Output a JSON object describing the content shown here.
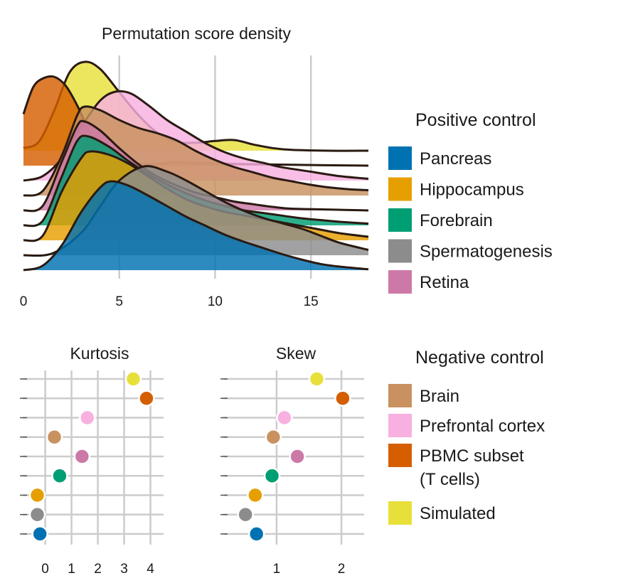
{
  "colors": {
    "Pancreas": "#0072b2",
    "Hippocampus": "#e69f00",
    "Forebrain": "#009e73",
    "Spermatogenesis": "#8c8c8c",
    "Retina": "#cc79a7",
    "Brain": "#c8915f",
    "Prefrontal cortex": "#f7b0e0",
    "PBMC subset (T cells)": "#d55e00",
    "Simulated": "#e8e03a"
  },
  "legend": {
    "positive_title": "Positive control",
    "positive_items": [
      "Pancreas",
      "Hippocampus",
      "Forebrain",
      "Spermatogenesis",
      "Retina"
    ],
    "negative_title": "Negative control",
    "negative_items": [
      {
        "key": "Brain",
        "lines": [
          "Brain"
        ]
      },
      {
        "key": "Prefrontal cortex",
        "lines": [
          "Prefrontal cortex"
        ]
      },
      {
        "key": "PBMC subset (T cells)",
        "lines": [
          "PBMC subset",
          "(T cells)"
        ]
      },
      {
        "key": "Simulated",
        "lines": [
          "Simulated"
        ]
      }
    ]
  },
  "chart_data": [
    {
      "type": "area",
      "subtype": "ridgeline density",
      "title": "Permutation score density",
      "xlabel": "",
      "ylabel": "",
      "xlim": [
        0,
        18
      ],
      "xticks": [
        0,
        5,
        10,
        15
      ],
      "xgrid": [
        5,
        10,
        15
      ],
      "series": [
        {
          "name": "Simulated",
          "peak_x": 3.2,
          "points": [
            [
              0,
              0.03
            ],
            [
              0.8,
              0.1
            ],
            [
              1.6,
              0.45
            ],
            [
              2.4,
              0.88
            ],
            [
              3.2,
              1.0
            ],
            [
              4.0,
              0.92
            ],
            [
              5.0,
              0.66
            ],
            [
              6.0,
              0.4
            ],
            [
              7.0,
              0.2
            ],
            [
              8.0,
              0.1
            ],
            [
              9.0,
              0.09
            ],
            [
              10.0,
              0.11
            ],
            [
              11.0,
              0.12
            ],
            [
              12.0,
              0.07
            ],
            [
              13.0,
              0.03
            ],
            [
              14.0,
              0.01
            ],
            [
              16.0,
              0.0
            ],
            [
              18.0,
              0.0
            ]
          ]
        },
        {
          "name": "PBMC subset (T cells)",
          "peak_x": 1.6,
          "points": [
            [
              0,
              0.58
            ],
            [
              0.5,
              0.88
            ],
            [
              1.0,
              0.98
            ],
            [
              1.6,
              1.0
            ],
            [
              2.2,
              0.9
            ],
            [
              2.8,
              0.68
            ],
            [
              3.5,
              0.36
            ],
            [
              4.2,
              0.14
            ],
            [
              5.0,
              0.05
            ],
            [
              6.0,
              0.02
            ],
            [
              7.0,
              0.02
            ],
            [
              8.0,
              0.04
            ],
            [
              9.0,
              0.03
            ],
            [
              11.0,
              0.02
            ],
            [
              14.0,
              0.01
            ],
            [
              18.0,
              0.0
            ]
          ]
        },
        {
          "name": "Prefrontal cortex",
          "peak_x": 4.8,
          "points": [
            [
              0,
              0.0
            ],
            [
              1.0,
              0.05
            ],
            [
              2.0,
              0.25
            ],
            [
              3.0,
              0.6
            ],
            [
              4.0,
              0.9
            ],
            [
              4.8,
              1.0
            ],
            [
              5.6,
              0.98
            ],
            [
              6.5,
              0.85
            ],
            [
              7.5,
              0.68
            ],
            [
              8.5,
              0.55
            ],
            [
              9.5,
              0.42
            ],
            [
              10.5,
              0.32
            ],
            [
              11.5,
              0.25
            ],
            [
              12.5,
              0.2
            ],
            [
              13.5,
              0.15
            ],
            [
              15.0,
              0.1
            ],
            [
              16.5,
              0.05
            ],
            [
              18.0,
              0.02
            ]
          ]
        },
        {
          "name": "Brain",
          "peak_x": 3.2,
          "points": [
            [
              0,
              0.0
            ],
            [
              1.0,
              0.05
            ],
            [
              2.0,
              0.45
            ],
            [
              2.8,
              0.9
            ],
            [
              3.2,
              1.0
            ],
            [
              4.0,
              0.96
            ],
            [
              5.0,
              0.85
            ],
            [
              6.0,
              0.76
            ],
            [
              7.0,
              0.7
            ],
            [
              8.0,
              0.62
            ],
            [
              9.0,
              0.5
            ],
            [
              10.0,
              0.4
            ],
            [
              11.0,
              0.32
            ],
            [
              12.0,
              0.26
            ],
            [
              13.0,
              0.2
            ],
            [
              14.0,
              0.16
            ],
            [
              15.0,
              0.12
            ],
            [
              16.0,
              0.09
            ],
            [
              17.0,
              0.07
            ],
            [
              18.0,
              0.06
            ]
          ]
        },
        {
          "name": "Retina",
          "peak_x": 3.2,
          "points": [
            [
              0,
              0.0
            ],
            [
              1.0,
              0.05
            ],
            [
              2.0,
              0.55
            ],
            [
              2.8,
              0.95
            ],
            [
              3.2,
              1.0
            ],
            [
              4.0,
              0.9
            ],
            [
              5.0,
              0.7
            ],
            [
              6.0,
              0.52
            ],
            [
              7.0,
              0.38
            ],
            [
              8.0,
              0.28
            ],
            [
              9.0,
              0.2
            ],
            [
              10.0,
              0.15
            ],
            [
              11.0,
              0.1
            ],
            [
              12.0,
              0.07
            ],
            [
              13.0,
              0.04
            ],
            [
              14.0,
              0.02
            ],
            [
              16.0,
              0.01
            ],
            [
              18.0,
              0.0
            ]
          ]
        },
        {
          "name": "Forebrain",
          "peak_x": 3.4,
          "points": [
            [
              0,
              0.0
            ],
            [
              1.0,
              0.05
            ],
            [
              2.0,
              0.55
            ],
            [
              2.8,
              0.95
            ],
            [
              3.4,
              1.0
            ],
            [
              4.5,
              0.88
            ],
            [
              5.5,
              0.72
            ],
            [
              6.5,
              0.58
            ],
            [
              7.5,
              0.46
            ],
            [
              8.5,
              0.36
            ],
            [
              9.5,
              0.28
            ],
            [
              10.5,
              0.22
            ],
            [
              11.5,
              0.17
            ],
            [
              12.5,
              0.14
            ],
            [
              13.5,
              0.11
            ],
            [
              14.5,
              0.08
            ],
            [
              15.5,
              0.06
            ],
            [
              16.5,
              0.04
            ],
            [
              18.0,
              0.02
            ]
          ]
        },
        {
          "name": "Hippocampus",
          "peak_x": 3.5,
          "points": [
            [
              0,
              0.0
            ],
            [
              1.0,
              0.05
            ],
            [
              2.0,
              0.55
            ],
            [
              3.0,
              0.92
            ],
            [
              3.5,
              1.0
            ],
            [
              4.5,
              0.96
            ],
            [
              5.5,
              0.86
            ],
            [
              6.5,
              0.72
            ],
            [
              7.5,
              0.58
            ],
            [
              8.5,
              0.46
            ],
            [
              9.5,
              0.38
            ],
            [
              10.5,
              0.32
            ],
            [
              11.5,
              0.28
            ],
            [
              12.5,
              0.24
            ],
            [
              13.5,
              0.2
            ],
            [
              14.5,
              0.16
            ],
            [
              15.5,
              0.12
            ],
            [
              16.5,
              0.08
            ],
            [
              18.0,
              0.04
            ]
          ]
        },
        {
          "name": "Spermatogenesis",
          "peak_x": 6.3,
          "points": [
            [
              0,
              0.0
            ],
            [
              1.5,
              0.02
            ],
            [
              3.0,
              0.25
            ],
            [
              4.0,
              0.55
            ],
            [
              5.0,
              0.84
            ],
            [
              6.3,
              1.0
            ],
            [
              7.5,
              0.94
            ],
            [
              8.5,
              0.84
            ],
            [
              9.5,
              0.72
            ],
            [
              10.5,
              0.6
            ],
            [
              11.5,
              0.5
            ],
            [
              12.5,
              0.42
            ],
            [
              13.5,
              0.36
            ],
            [
              14.5,
              0.3
            ],
            [
              15.5,
              0.22
            ],
            [
              16.5,
              0.14
            ],
            [
              18.0,
              0.06
            ]
          ]
        },
        {
          "name": "Pancreas",
          "peak_x": 4.6,
          "points": [
            [
              0,
              0.0
            ],
            [
              1.0,
              0.05
            ],
            [
              2.0,
              0.28
            ],
            [
              3.0,
              0.65
            ],
            [
              4.0,
              0.93
            ],
            [
              4.6,
              1.0
            ],
            [
              5.5,
              0.95
            ],
            [
              6.5,
              0.84
            ],
            [
              7.5,
              0.72
            ],
            [
              8.5,
              0.6
            ],
            [
              9.5,
              0.5
            ],
            [
              10.5,
              0.4
            ],
            [
              11.5,
              0.32
            ],
            [
              12.5,
              0.25
            ],
            [
              13.5,
              0.18
            ],
            [
              14.5,
              0.12
            ],
            [
              15.5,
              0.07
            ],
            [
              16.5,
              0.04
            ],
            [
              18.0,
              0.01
            ]
          ]
        }
      ]
    },
    {
      "type": "scatter",
      "subtype": "dot plot",
      "title": "Kurtosis",
      "xlim": [
        -0.8,
        4.5
      ],
      "xticks": [
        0,
        1,
        2,
        3,
        4
      ],
      "categories": [
        "Simulated",
        "PBMC subset (T cells)",
        "Prefrontal cortex",
        "Brain",
        "Retina",
        "Forebrain",
        "Hippocampus",
        "Spermatogenesis",
        "Pancreas"
      ],
      "values": [
        3.35,
        3.85,
        1.6,
        0.35,
        1.4,
        0.55,
        -0.3,
        -0.3,
        -0.2
      ]
    },
    {
      "type": "scatter",
      "subtype": "dot plot",
      "title": "Skew",
      "xlim": [
        0.2,
        2.35
      ],
      "xticks": [
        1,
        2
      ],
      "categories": [
        "Simulated",
        "PBMC subset (T cells)",
        "Prefrontal cortex",
        "Brain",
        "Retina",
        "Forebrain",
        "Hippocampus",
        "Spermatogenesis",
        "Pancreas"
      ],
      "values": [
        1.62,
        2.02,
        1.12,
        0.95,
        1.32,
        0.93,
        0.67,
        0.52,
        0.69
      ]
    }
  ]
}
